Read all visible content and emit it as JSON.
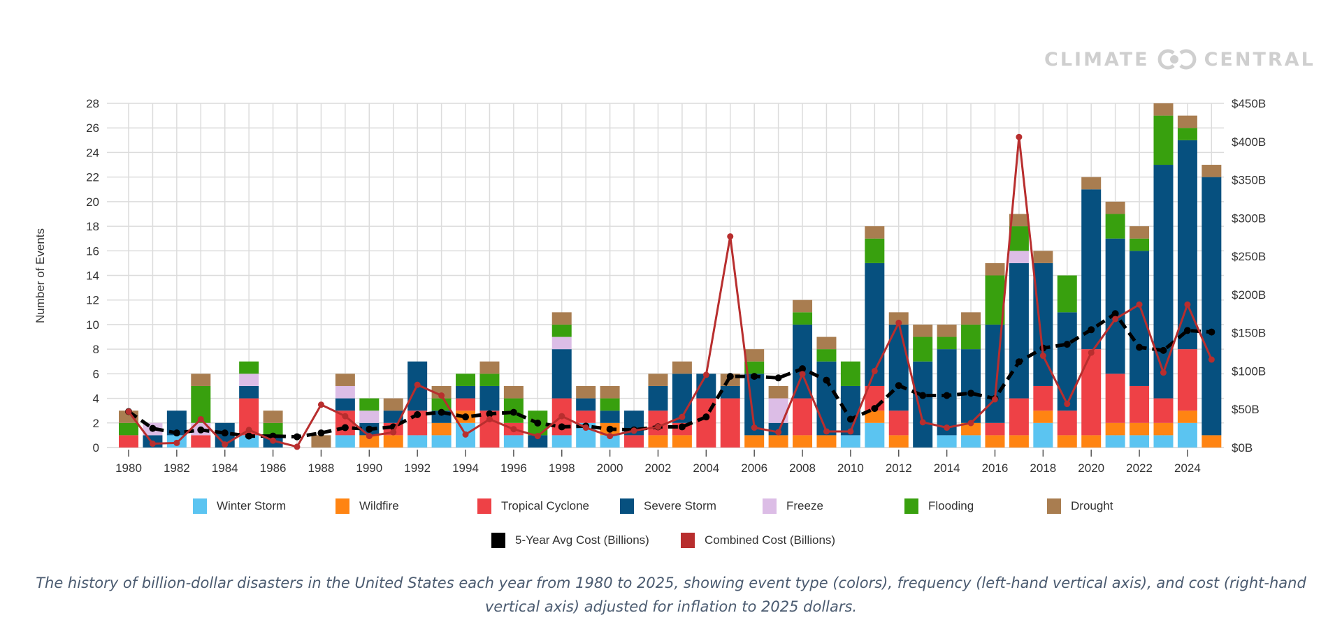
{
  "brand": {
    "name": "CLIMATE CENTRAL"
  },
  "caption": "The history of billion-dollar disasters in the United States each year from 1980 to 2025, showing event type (colors), frequency (left-hand vertical axis), and cost (right-hand vertical axis) adjusted for inflation to 2025 dollars.",
  "chart_data": {
    "type": "bar",
    "stacked": true,
    "ylabel": "Number of Events",
    "ylim": [
      0,
      28
    ],
    "y_ticks": [
      "0",
      "2",
      "4",
      "6",
      "8",
      "10",
      "12",
      "14",
      "16",
      "18",
      "20",
      "22",
      "24",
      "26",
      "28"
    ],
    "y2lim": [
      0,
      450
    ],
    "y2_ticks": [
      "$0B",
      "$50B",
      "$100B",
      "$150B",
      "$200B",
      "$250B",
      "$300B",
      "$350B",
      "$400B",
      "$450B"
    ],
    "x_ticks": [
      "1980",
      "1982",
      "1984",
      "1986",
      "1988",
      "1990",
      "1992",
      "1994",
      "1996",
      "1998",
      "2000",
      "2002",
      "2004",
      "2006",
      "2008",
      "2010",
      "2012",
      "2014",
      "2016",
      "2018",
      "2020",
      "2022",
      "2024"
    ],
    "grid": true,
    "legend_placement": "bottom",
    "categories": [
      1980,
      1981,
      1982,
      1983,
      1984,
      1985,
      1986,
      1987,
      1988,
      1989,
      1990,
      1991,
      1992,
      1993,
      1994,
      1995,
      1996,
      1997,
      1998,
      1999,
      2000,
      2001,
      2002,
      2003,
      2004,
      2005,
      2006,
      2007,
      2008,
      2009,
      2010,
      2011,
      2012,
      2013,
      2014,
      2015,
      2016,
      2017,
      2018,
      2019,
      2020,
      2021,
      2022,
      2023,
      2024,
      2025
    ],
    "series": [
      {
        "name": "Winter Storm",
        "color": "#5bc4f1",
        "values": [
          0,
          0,
          1,
          0,
          0,
          1,
          0,
          0,
          0,
          1,
          0,
          0,
          1,
          1,
          2,
          0,
          1,
          0,
          1,
          2,
          1,
          0,
          0,
          0,
          0,
          0,
          0,
          0,
          0,
          0,
          1,
          2,
          0,
          0,
          1,
          1,
          0,
          0,
          2,
          0,
          0,
          1,
          1,
          1,
          2,
          0
        ]
      },
      {
        "name": "Wildfire",
        "color": "#ff8412",
        "values": [
          0,
          0,
          0,
          0,
          0,
          0,
          0,
          0,
          0,
          0,
          1,
          1,
          0,
          1,
          1,
          0,
          0,
          0,
          0,
          0,
          1,
          0,
          1,
          1,
          0,
          0,
          1,
          1,
          1,
          1,
          0,
          1,
          1,
          0,
          0,
          1,
          1,
          1,
          1,
          1,
          1,
          1,
          1,
          1,
          1,
          1
        ]
      },
      {
        "name": "Tropical Cyclone",
        "color": "#ee4146",
        "values": [
          1,
          0,
          0,
          1,
          0,
          3,
          0,
          0,
          0,
          2,
          0,
          1,
          2,
          0,
          1,
          3,
          1,
          0,
          3,
          1,
          0,
          1,
          2,
          1,
          4,
          4,
          0,
          0,
          3,
          0,
          0,
          2,
          2,
          0,
          0,
          0,
          1,
          3,
          2,
          2,
          7,
          4,
          3,
          2,
          5,
          0
        ]
      },
      {
        "name": "Severe Storm",
        "color": "#06507f",
        "values": [
          0,
          1,
          2,
          0,
          2,
          1,
          1,
          0,
          0,
          1,
          1,
          1,
          4,
          1,
          1,
          2,
          0,
          1,
          4,
          1,
          1,
          2,
          2,
          4,
          2,
          1,
          5,
          1,
          6,
          6,
          4,
          10,
          7,
          7,
          7,
          6,
          8,
          11,
          10,
          8,
          13,
          11,
          11,
          19,
          17,
          21
        ]
      },
      {
        "name": "Freeze",
        "color": "#dcbde6",
        "values": [
          0,
          1,
          0,
          1,
          0,
          1,
          0,
          0,
          0,
          1,
          1,
          0,
          0,
          0,
          0,
          0,
          0,
          0,
          1,
          0,
          0,
          0,
          0,
          0,
          0,
          0,
          0,
          2,
          0,
          0,
          0,
          0,
          0,
          0,
          0,
          0,
          0,
          1,
          0,
          0,
          0,
          0,
          0,
          0,
          0,
          0
        ]
      },
      {
        "name": "Flooding",
        "color": "#38a00e",
        "values": [
          1,
          0,
          0,
          3,
          0,
          1,
          1,
          0,
          0,
          0,
          1,
          0,
          0,
          1,
          1,
          1,
          2,
          2,
          1,
          0,
          1,
          0,
          0,
          0,
          0,
          0,
          1,
          0,
          1,
          1,
          2,
          2,
          0,
          2,
          1,
          2,
          4,
          2,
          0,
          3,
          0,
          2,
          1,
          4,
          1,
          0
        ]
      },
      {
        "name": "Drought",
        "color": "#a97d50",
        "values": [
          1,
          0,
          0,
          1,
          0,
          0,
          1,
          0,
          1,
          1,
          0,
          1,
          0,
          1,
          0,
          1,
          1,
          0,
          1,
          1,
          1,
          0,
          1,
          1,
          0,
          1,
          1,
          1,
          1,
          1,
          0,
          1,
          1,
          1,
          1,
          1,
          1,
          1,
          1,
          0,
          1,
          1,
          1,
          1,
          1,
          1
        ]
      }
    ],
    "lines": [
      {
        "name": "5-Year Avg Cost (Billions)",
        "color": "#000000",
        "axis": "right",
        "style": "dashed",
        "values": [
          47,
          25,
          19,
          23,
          19,
          15,
          15,
          14,
          19,
          26,
          24,
          27,
          43,
          46,
          40,
          44,
          46,
          32,
          27,
          28,
          24,
          23,
          27,
          27,
          40,
          93,
          93,
          91,
          103,
          88,
          37,
          51,
          81,
          68,
          68,
          71,
          64,
          112,
          130,
          135,
          154,
          175,
          131,
          127,
          153,
          151
        ]
      },
      {
        "name": "Combined Cost (Billions)",
        "color": "#b82e2e",
        "axis": "right",
        "style": "solid",
        "values": [
          47,
          5,
          6,
          37,
          4,
          23,
          9,
          1,
          56,
          41,
          15,
          20,
          82,
          68,
          17,
          37,
          24,
          15,
          41,
          26,
          15,
          22,
          27,
          40,
          95,
          276,
          26,
          20,
          96,
          21,
          21,
          100,
          163,
          33,
          26,
          32,
          63,
          406,
          120,
          57,
          124,
          168,
          187,
          98,
          187,
          115
        ]
      }
    ]
  }
}
